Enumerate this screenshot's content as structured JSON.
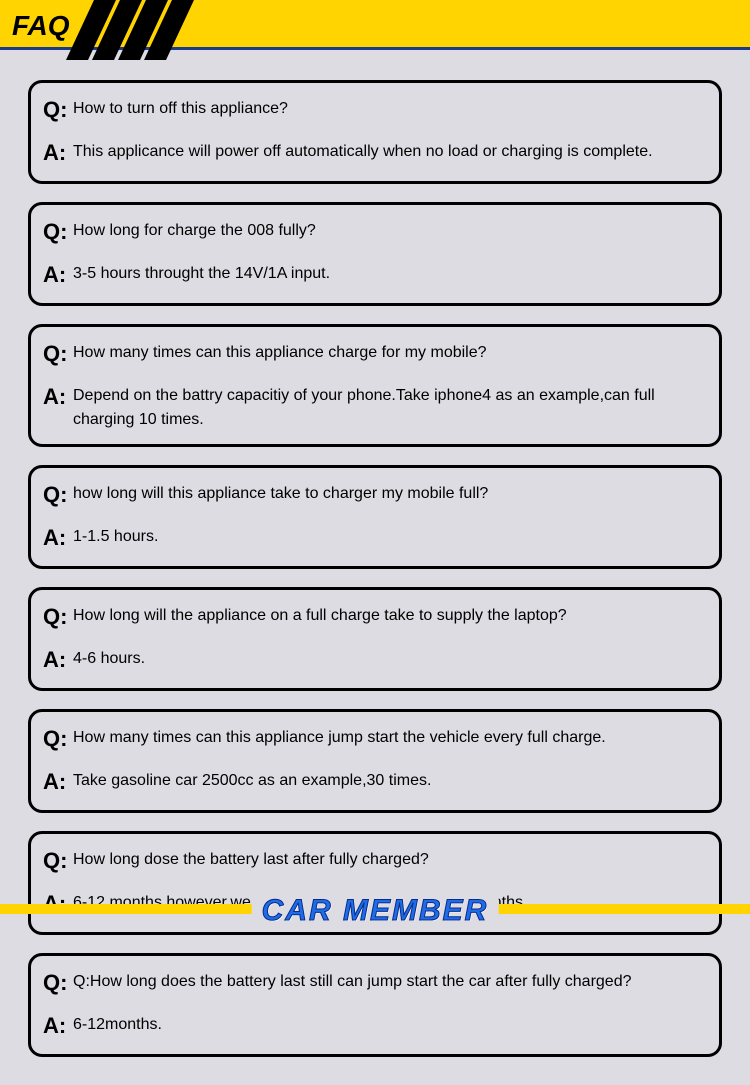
{
  "header": {
    "title": "FAQ"
  },
  "faq": [
    {
      "q": "How to turn off this appliance?",
      "a": "This applicance will power off automatically when no load or charging is complete."
    },
    {
      "q": "How long for charge the 008 fully?",
      "a": "3-5 hours throught the 14V/1A input."
    },
    {
      "q": "How many times can this appliance charge for my mobile?",
      "a": "Depend on the battry capacitiy of your phone.Take iphone4 as an example,can full charging 10 times."
    },
    {
      "q": "how long will this appliance take to charger my mobile full?",
      "a": "1-1.5 hours."
    },
    {
      "q": "How long will the appliance on a full charge take to supply the laptop?",
      "a": "4-6 hours."
    },
    {
      "q": "How many times can this appliance jump start the vehicle every full charge.",
      "a": "Take gasoline car 2500cc as an example,30 times."
    },
    {
      "q": "How long dose the battery last after fully charged?",
      "a": "6-12 months,however,we suggest to recharge it every 3 months."
    },
    {
      "q": "Q:How long does the battery last still can jump start the car after fully charged?",
      "a": "6-12months."
    }
  ],
  "footer": {
    "brand": "CAR MEMBER"
  },
  "style": {
    "header_bg": "#ffd400",
    "header_border": "#1b3a8a",
    "stripe_color": "#000000",
    "page_bg": "#dcdce2",
    "box_border": "#000000",
    "box_radius": 14,
    "qa_prefix_fontsize": 22,
    "qa_text_fontsize": 16,
    "brand_color": "#1e6de6",
    "brand_outline": "#0a2a8a",
    "footer_bar_color": "#ffd400"
  }
}
